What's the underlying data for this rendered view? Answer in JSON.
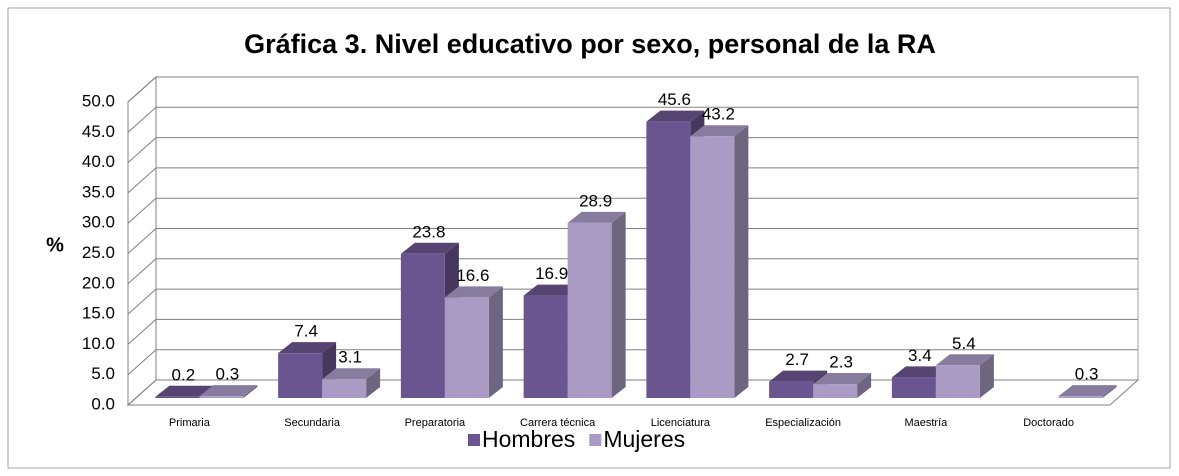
{
  "chart_data": {
    "type": "bar3d",
    "title": "Gráfica 3. Nivel educativo por sexo, personal de la RA",
    "y_label": "%",
    "categories": [
      "Primaria",
      "Secundaria",
      "Preparatoria",
      "Carrera técnica",
      "Licenciatura",
      "Especialización",
      "Maestría",
      "Doctorado"
    ],
    "series": [
      {
        "name": "Hombres",
        "color": "#6b5590",
        "values": [
          0.2,
          7.4,
          23.8,
          16.9,
          45.6,
          2.7,
          3.4,
          null
        ]
      },
      {
        "name": "Mujeres",
        "color": "#a99bc4",
        "values": [
          0.3,
          3.1,
          16.6,
          28.9,
          43.2,
          2.3,
          5.4,
          0.3
        ]
      }
    ],
    "ylim": [
      0,
      50
    ],
    "yticks": [
      {
        "value": 0,
        "label": "0.0"
      },
      {
        "value": 5,
        "label": "5.0"
      },
      {
        "value": 10,
        "label": "10.0"
      },
      {
        "value": 15,
        "label": "15.0"
      },
      {
        "value": 20,
        "label": "20.0"
      },
      {
        "value": 25,
        "label": "25.0"
      },
      {
        "value": 30,
        "label": "30.0"
      },
      {
        "value": 35,
        "label": "35.0"
      },
      {
        "value": 40,
        "label": "40.0"
      },
      {
        "value": 45,
        "label": "45.0"
      },
      {
        "value": 50,
        "label": "50.0"
      }
    ],
    "grid": true,
    "legend": "bottom"
  }
}
